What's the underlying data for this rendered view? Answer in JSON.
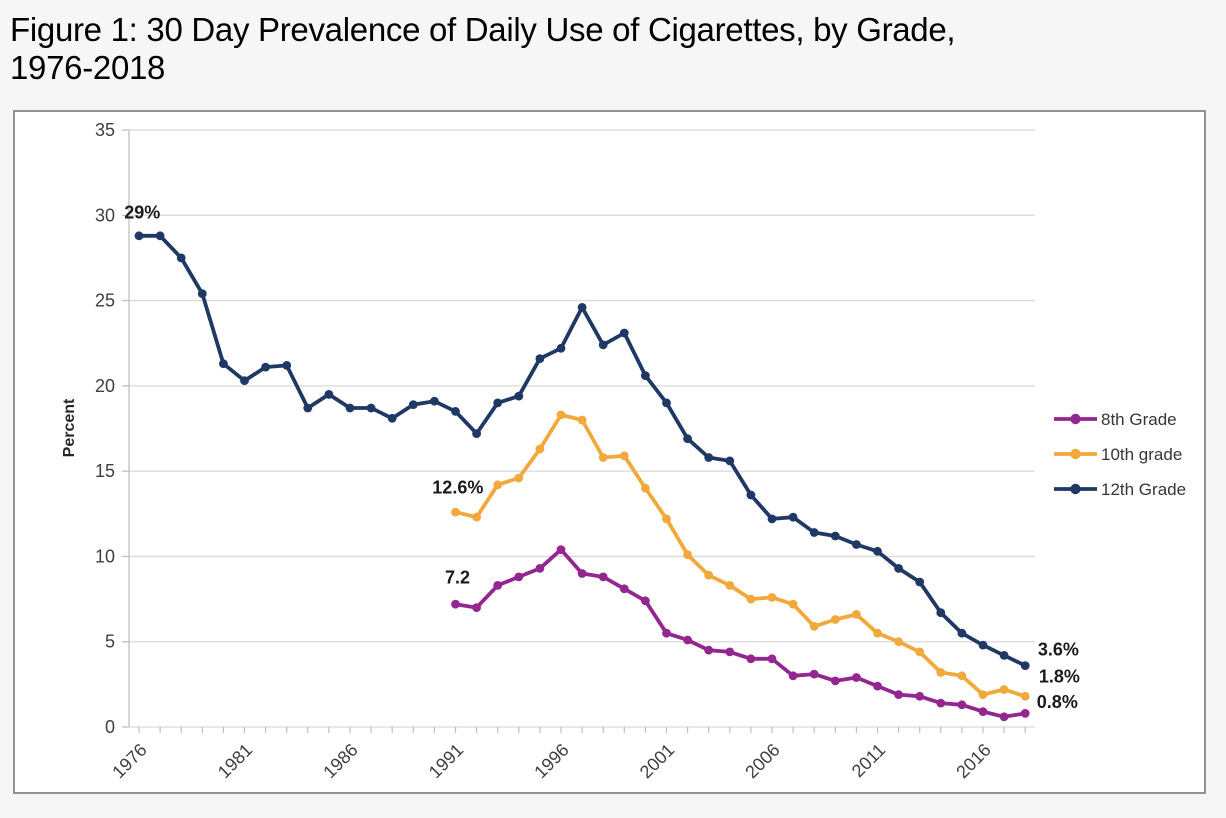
{
  "figure": {
    "title_line1": "Figure 1: 30 Day Prevalence of Daily Use of Cigarettes, by Grade,",
    "title_line2": "1976-2018"
  },
  "chart_data": {
    "type": "line",
    "title": "30 Day Prevalence of Daily Use of Cigarettes, by Grade, 1976-2018",
    "xlabel": "",
    "ylabel": "Percent",
    "xlim": [
      1976,
      2018
    ],
    "ylim": [
      0,
      35
    ],
    "yticks": [
      0,
      5,
      10,
      15,
      20,
      25,
      30,
      35
    ],
    "xticks": [
      1976,
      1981,
      1986,
      1991,
      1996,
      2001,
      2006,
      2011,
      2016
    ],
    "grid": true,
    "legend_position": "right",
    "grid_color": "#d9d9d9",
    "axis_color": "#bfbfbf",
    "series": [
      {
        "name": "8th Grade",
        "color": "#93278F",
        "start_year": 1991,
        "values": [
          7.2,
          7.0,
          8.3,
          8.8,
          9.3,
          10.4,
          9.0,
          8.8,
          8.1,
          7.4,
          5.5,
          5.1,
          4.5,
          4.4,
          4.0,
          4.0,
          3.0,
          3.1,
          2.7,
          2.9,
          2.4,
          1.9,
          1.8,
          1.4,
          1.3,
          0.9,
          0.6,
          0.8
        ]
      },
      {
        "name": "10th grade",
        "color": "#F2A93C",
        "start_year": 1991,
        "values": [
          12.6,
          12.3,
          14.2,
          14.6,
          16.3,
          18.3,
          18.0,
          15.8,
          15.9,
          14.0,
          12.2,
          10.1,
          8.9,
          8.3,
          7.5,
          7.6,
          7.2,
          5.9,
          6.3,
          6.6,
          5.5,
          5.0,
          4.4,
          3.2,
          3.0,
          1.9,
          2.2,
          1.8
        ]
      },
      {
        "name": "12th Grade",
        "color": "#1F3864",
        "start_year": 1976,
        "values": [
          28.8,
          28.8,
          27.5,
          25.4,
          21.3,
          20.3,
          21.1,
          21.2,
          18.7,
          19.5,
          18.7,
          18.7,
          18.1,
          18.9,
          19.1,
          18.5,
          17.2,
          19.0,
          19.4,
          21.6,
          22.2,
          24.6,
          22.4,
          23.1,
          20.6,
          19.0,
          16.9,
          15.8,
          15.6,
          13.6,
          12.2,
          12.3,
          11.4,
          11.2,
          10.7,
          10.3,
          9.3,
          8.5,
          6.7,
          5.5,
          4.8,
          4.2,
          3.6
        ]
      }
    ],
    "annotations": [
      {
        "text": "29%",
        "x_year": 1975.3,
        "y_percent": 29.8,
        "anchor": "start"
      },
      {
        "text": "12.6%",
        "x_year": 1989.9,
        "y_percent": 13.7,
        "anchor": "start"
      },
      {
        "text": "7.2",
        "x_year": 1990.5,
        "y_percent": 8.4,
        "anchor": "start"
      },
      {
        "text": "3.6%",
        "x_year": 2018.6,
        "y_percent": 4.2,
        "anchor": "start"
      },
      {
        "text": "1.8%",
        "x_year": 2018.65,
        "y_percent": 2.6,
        "anchor": "start"
      },
      {
        "text": "0.8%",
        "x_year": 2018.55,
        "y_percent": 1.1,
        "anchor": "start"
      }
    ]
  }
}
